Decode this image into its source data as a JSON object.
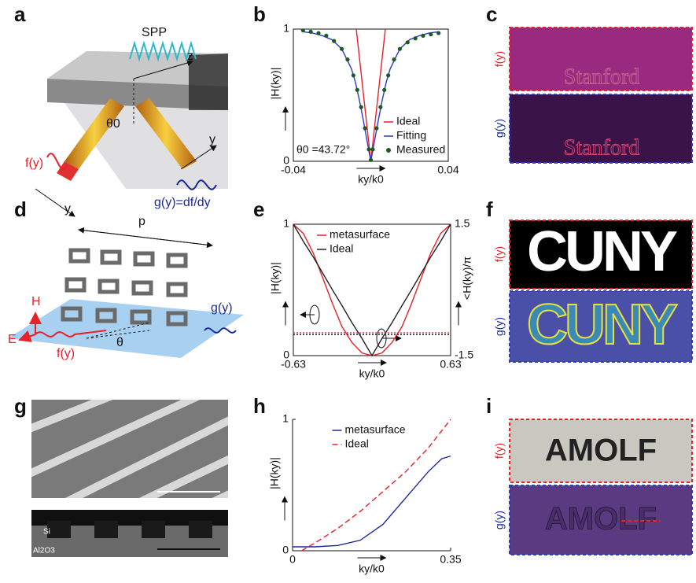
{
  "panel_labels": [
    "a",
    "b",
    "c",
    "d",
    "e",
    "f",
    "g",
    "h",
    "i"
  ],
  "diagrams": {
    "a": [
      "SPP",
      "z",
      "θ0",
      "f(y)",
      "y",
      "y",
      "g(y)=df/dy"
    ],
    "d": [
      "p",
      "H",
      "E",
      "f(y)",
      "θ",
      "g(y)"
    ],
    "g": [
      "Si",
      "Al2O3"
    ]
  },
  "images": {
    "c": {
      "top_label": "f(y)",
      "bottom_label": "g(y)",
      "word": "Stanford"
    },
    "f": {
      "top_label": "f(y)",
      "bottom_label": "g(y)",
      "word": "CUNY"
    },
    "i": {
      "top_label": "f(y)",
      "bottom_label": "g(y)",
      "word": "AMOLF"
    }
  },
  "chart_data": [
    {
      "type": "line",
      "xlabel": "ky/k0",
      "ylabel": "|H(ky)|",
      "annotation": "θ0 =43.72°",
      "xlim": [
        -0.04,
        0.04
      ],
      "xticks": [
        -0.04,
        0.04
      ],
      "ylim": [
        0,
        1
      ],
      "yticks": [
        0,
        1
      ],
      "frame": true,
      "legend": "lower right",
      "series": [
        {
          "name": "Ideal",
          "color": "#e8202a",
          "x": [
            -0.0075,
            0,
            0.0075
          ],
          "values": [
            1,
            0,
            1
          ]
        },
        {
          "name": "Fitting",
          "color": "#2a3cc8",
          "x": [
            -0.035,
            -0.03,
            -0.025,
            -0.02,
            -0.015,
            -0.01,
            -0.008,
            -0.006,
            -0.004,
            -0.002,
            0,
            0.002,
            0.004,
            0.006,
            0.008,
            0.01,
            0.015,
            0.02,
            0.025,
            0.03,
            0.035
          ],
          "values": [
            0.98,
            0.97,
            0.95,
            0.92,
            0.85,
            0.7,
            0.6,
            0.47,
            0.32,
            0.16,
            0,
            0.16,
            0.32,
            0.47,
            0.6,
            0.7,
            0.85,
            0.92,
            0.95,
            0.97,
            0.98
          ]
        },
        {
          "name": "Measured",
          "color": "#1e5a1e",
          "marker": "dot",
          "x": [
            -0.035,
            -0.031,
            -0.027,
            -0.023,
            -0.019,
            -0.015,
            -0.012,
            -0.009,
            -0.007,
            -0.005,
            -0.003,
            -0.001,
            0,
            0.001,
            0.003,
            0.005,
            0.007,
            0.009,
            0.012,
            0.015,
            0.019,
            0.023,
            0.027,
            0.031,
            0.035
          ],
          "values": [
            0.99,
            0.98,
            0.97,
            0.95,
            0.91,
            0.85,
            0.77,
            0.65,
            0.54,
            0.41,
            0.25,
            0.09,
            0.01,
            0.09,
            0.25,
            0.41,
            0.54,
            0.65,
            0.77,
            0.85,
            0.9,
            0.93,
            0.95,
            0.96,
            0.97
          ]
        }
      ]
    },
    {
      "type": "line",
      "xlabel": "ky/k0",
      "ylabel": "|H(ky)|",
      "y2label": "<H(ky)/π",
      "xlim": [
        -0.63,
        0.63
      ],
      "xticks": [
        -0.63,
        0.63
      ],
      "ylim": [
        0,
        1
      ],
      "yticks": [
        0,
        1
      ],
      "y2lim": [
        -1.5,
        1.5
      ],
      "y2ticks": [
        -1.5,
        1.5
      ],
      "frame": true,
      "legend": "upper left",
      "series": [
        {
          "name": "metasurface",
          "color": "#e8202a",
          "x": [
            -0.63,
            -0.55,
            -0.47,
            -0.39,
            -0.31,
            -0.24,
            -0.16,
            -0.08,
            0,
            0.08,
            0.16,
            0.24,
            0.31,
            0.39,
            0.47,
            0.55,
            0.63
          ],
          "values": [
            1,
            0.93,
            0.78,
            0.58,
            0.38,
            0.22,
            0.1,
            0.02,
            0,
            0.02,
            0.1,
            0.22,
            0.38,
            0.58,
            0.78,
            0.93,
            1
          ]
        },
        {
          "name": "Ideal",
          "color": "#222222",
          "x": [
            -0.63,
            -0.55,
            -0.47,
            -0.39,
            -0.31,
            -0.24,
            -0.16,
            -0.08,
            0,
            0.08,
            0.16,
            0.24,
            0.31,
            0.39,
            0.47,
            0.55,
            0.63
          ],
          "values": [
            1,
            0.87,
            0.75,
            0.62,
            0.49,
            0.38,
            0.25,
            0.13,
            0,
            0.13,
            0.25,
            0.38,
            0.49,
            0.62,
            0.75,
            0.87,
            1
          ]
        },
        {
          "color": "#e8202a",
          "dash": "dotted",
          "axis": "y2",
          "x": [
            -0.63,
            0.63
          ],
          "values": [
            -0.98,
            -0.98
          ]
        },
        {
          "color": "#222222",
          "dash": "dotted",
          "axis": "y2",
          "x": [
            -0.63,
            0.63
          ],
          "values": [
            -1.02,
            -1.02
          ]
        }
      ]
    },
    {
      "type": "line",
      "xlabel": "ky/k0",
      "ylabel": "|H(ky)|",
      "xlim": [
        0,
        0.35
      ],
      "xticks": [
        0,
        0.35
      ],
      "ylim": [
        0,
        1
      ],
      "yticks": [
        0,
        1
      ],
      "frame": false,
      "legend": "upper center",
      "series": [
        {
          "name": "metasurface",
          "color": "#1a2a9a",
          "x": [
            0,
            0.05,
            0.1,
            0.15,
            0.2,
            0.25,
            0.3,
            0.33,
            0.35
          ],
          "values": [
            0.03,
            0.03,
            0.04,
            0.08,
            0.2,
            0.4,
            0.6,
            0.7,
            0.72
          ]
        },
        {
          "name": "Ideal",
          "color": "#e8202a",
          "dash": "dashed",
          "x": [
            0.02,
            0.05,
            0.1,
            0.15,
            0.2,
            0.25,
            0.3,
            0.35
          ],
          "values": [
            0,
            0.06,
            0.17,
            0.3,
            0.45,
            0.6,
            0.78,
            1
          ]
        }
      ]
    }
  ]
}
